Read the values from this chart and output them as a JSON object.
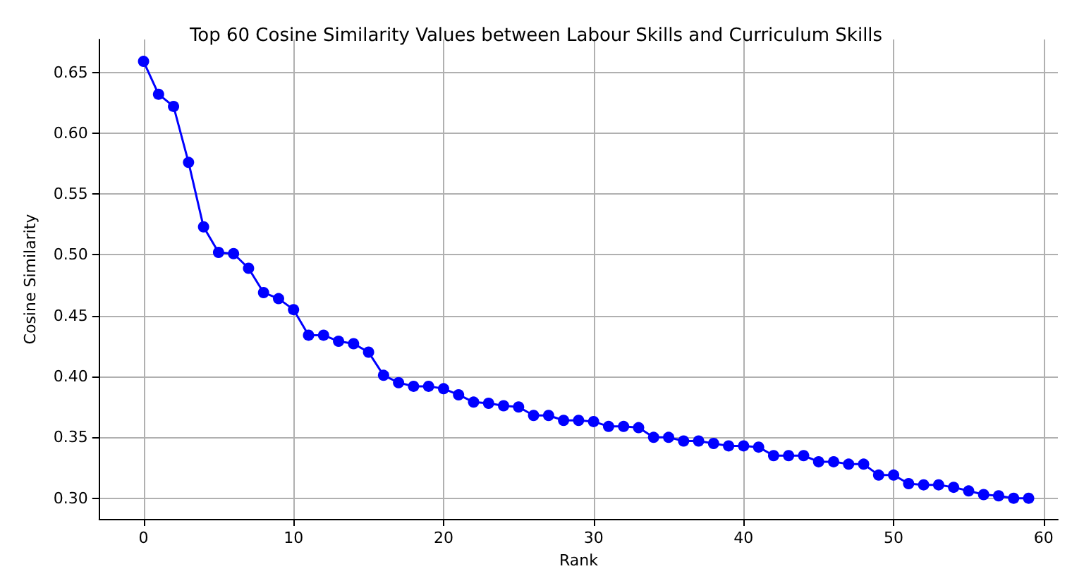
{
  "chart_data": {
    "type": "line",
    "title": "Top 60 Cosine Similarity Values between Labour Skills and Curriculum Skills",
    "xlabel": "Rank",
    "ylabel": "Cosine Similarity",
    "x": [
      0,
      1,
      2,
      3,
      4,
      5,
      6,
      7,
      8,
      9,
      10,
      11,
      12,
      13,
      14,
      15,
      16,
      17,
      18,
      19,
      20,
      21,
      22,
      23,
      24,
      25,
      26,
      27,
      28,
      29,
      30,
      31,
      32,
      33,
      34,
      35,
      36,
      37,
      38,
      39,
      40,
      41,
      42,
      43,
      44,
      45,
      46,
      47,
      48,
      49,
      50,
      51,
      52,
      53,
      54,
      55,
      56,
      57,
      58,
      59
    ],
    "series": [
      {
        "color": "#0000ff",
        "values": [
          0.659,
          0.632,
          0.622,
          0.576,
          0.523,
          0.502,
          0.501,
          0.489,
          0.469,
          0.464,
          0.455,
          0.434,
          0.434,
          0.429,
          0.427,
          0.42,
          0.401,
          0.395,
          0.392,
          0.392,
          0.39,
          0.385,
          0.379,
          0.378,
          0.376,
          0.375,
          0.368,
          0.368,
          0.364,
          0.364,
          0.363,
          0.359,
          0.359,
          0.358,
          0.35,
          0.35,
          0.347,
          0.347,
          0.345,
          0.343,
          0.343,
          0.342,
          0.335,
          0.335,
          0.335,
          0.33,
          0.33,
          0.328,
          0.328,
          0.319,
          0.319,
          0.312,
          0.311,
          0.311,
          0.309,
          0.306,
          0.303,
          0.302,
          0.3,
          0.3
        ]
      }
    ],
    "xlim": [
      -2.95,
      60.95
    ],
    "xticks": [
      0,
      10,
      20,
      30,
      40,
      50,
      60
    ],
    "ylim": [
      0.283,
      0.677
    ],
    "yticks": [
      {
        "value": 0.3,
        "label": "0.30"
      },
      {
        "value": 0.35,
        "label": "0.35"
      },
      {
        "value": 0.4,
        "label": "0.40"
      },
      {
        "value": 0.45,
        "label": "0.45"
      },
      {
        "value": 0.5,
        "label": "0.50"
      },
      {
        "value": 0.55,
        "label": "0.55"
      },
      {
        "value": 0.6,
        "label": "0.60"
      },
      {
        "value": 0.65,
        "label": "0.65"
      }
    ],
    "grid": true,
    "marker": "circle",
    "line_style": "solid"
  }
}
